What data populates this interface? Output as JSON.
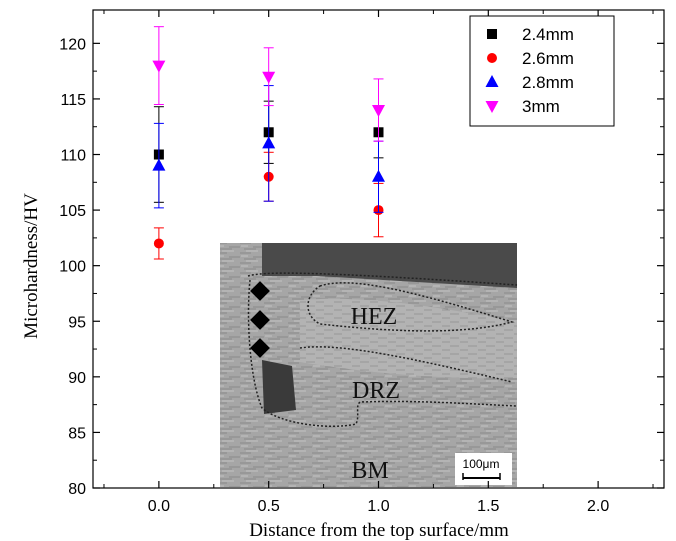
{
  "chart_data": {
    "type": "scatter",
    "xlabel": "Distance from the top surface/mm",
    "ylabel": "Microhardness/HV",
    "xlim": [
      -0.3,
      2.3
    ],
    "ylim": [
      80,
      123
    ],
    "x_ticks": [
      "0.0",
      "0.5",
      "1.0",
      "1.5",
      "2.0"
    ],
    "y_ticks": [
      "80",
      "85",
      "90",
      "95",
      "100",
      "105",
      "110",
      "115",
      "120"
    ],
    "legend_position": "top-right",
    "series": [
      {
        "name": "2.4mm",
        "marker": "square",
        "color": "#000000",
        "points": [
          {
            "x": 0.0,
            "y": 110,
            "err": 4.3
          },
          {
            "x": 0.5,
            "y": 112,
            "err": 2.8
          },
          {
            "x": 1.0,
            "y": 112,
            "err": 2.3
          }
        ]
      },
      {
        "name": "2.6mm",
        "marker": "circle",
        "color": "#ff0000",
        "points": [
          {
            "x": 0.0,
            "y": 102,
            "err": 1.4
          },
          {
            "x": 0.5,
            "y": 108,
            "err": 2.2
          },
          {
            "x": 1.0,
            "y": 105,
            "err": 2.4
          }
        ]
      },
      {
        "name": "2.8mm",
        "marker": "triangle-up",
        "color": "#0000ff",
        "points": [
          {
            "x": 0.0,
            "y": 109,
            "err": 3.8
          },
          {
            "x": 0.5,
            "y": 111,
            "err": 5.2
          },
          {
            "x": 1.0,
            "y": 108,
            "err": 3.2
          }
        ]
      },
      {
        "name": "3mm",
        "marker": "triangle-down",
        "color": "#ff00ff",
        "points": [
          {
            "x": 0.0,
            "y": 118,
            "err": 3.5
          },
          {
            "x": 0.5,
            "y": 117,
            "err": 2.6
          },
          {
            "x": 1.0,
            "y": 114,
            "err": 2.8
          }
        ]
      }
    ]
  },
  "inset": {
    "labels": {
      "hez": "HEZ",
      "drz": "DRZ",
      "bm": "BM"
    },
    "scale_bar": "100μm"
  }
}
